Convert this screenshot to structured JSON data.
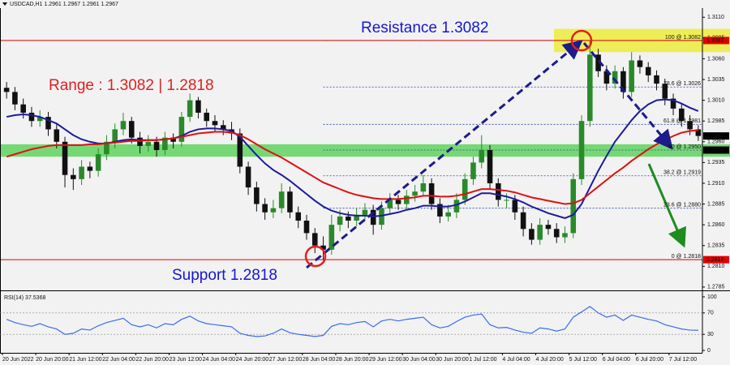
{
  "chart_data": {
    "type": "candlestick",
    "header": "USDCAD,H1  1.2961 1.2967 1.2961 1.2967",
    "annotations": {
      "resistance": "Resistance 1.3082",
      "range": "Range : 1.3082 | 1.2818",
      "support": "Support 1.2818"
    },
    "categories": [
      "20 Jun 2022",
      null,
      null,
      null,
      "20 Jun 20:00",
      null,
      null,
      null,
      "21 Jun 12:00",
      null,
      null,
      null,
      "22 Jun 04:00",
      null,
      null,
      null,
      "22 Jun 20:00",
      null,
      null,
      null,
      "23 Jun 12:00",
      null,
      null,
      null,
      "24 Jun 04:00",
      null,
      null,
      null,
      "24 Jun 20:00",
      null,
      null,
      null,
      "27 Jun 12:00",
      null,
      null,
      null,
      "28 Jun 04:00",
      null,
      null,
      null,
      "28 Jun 20:00",
      null,
      null,
      null,
      "29 Jun 12:00",
      null,
      null,
      null,
      "30 Jun 04:00",
      null,
      null,
      null,
      "30 Jun 20:00",
      null,
      null,
      null,
      "1 Jul 12:00",
      null,
      null,
      null,
      "4 Jul 04:00",
      null,
      null,
      null,
      "4 Jul 20:00",
      null,
      null,
      null,
      "5 Jul 12:00",
      null,
      null,
      null,
      "6 Jul 04:00",
      null,
      null,
      null,
      "6 Jul 20:00",
      null,
      null,
      null,
      "7 Jul 12:00",
      null,
      null,
      null
    ],
    "open": [
      1.3025,
      1.302,
      1.3005,
      1.2995,
      1.2985,
      1.299,
      1.2975,
      1.296,
      1.292,
      1.2915,
      1.293,
      1.2925,
      1.2945,
      1.296,
      1.2975,
      1.2985,
      1.2965,
      1.2955,
      1.296,
      1.295,
      1.2965,
      1.296,
      1.299,
      1.301,
      1.2995,
      1.2985,
      1.298,
      1.2975,
      1.297,
      1.293,
      1.2905,
      1.2885,
      1.2875,
      1.288,
      1.29,
      1.2875,
      1.2865,
      1.285,
      1.2835,
      1.283,
      1.286,
      1.287,
      1.2865,
      1.2872,
      1.2878,
      1.286,
      1.288,
      1.289,
      1.2885,
      1.2895,
      1.29,
      1.291,
      1.2885,
      1.287,
      1.2875,
      1.289,
      1.2915,
      1.2935,
      1.295,
      1.291,
      1.289,
      1.289,
      1.2875,
      1.2855,
      1.2842,
      1.286,
      1.2855,
      1.2845,
      1.285,
      1.2915,
      1.2985,
      1.3065,
      1.3045,
      1.303,
      1.3045,
      1.302,
      1.3058,
      1.305,
      1.304,
      1.303,
      1.3012,
      1.3,
      1.2985,
      1.2975
    ],
    "high": [
      1.3032,
      1.3026,
      1.3012,
      1.3002,
      1.2998,
      1.2996,
      1.2982,
      1.2966,
      1.2928,
      1.2938,
      1.2936,
      1.2952,
      1.2968,
      1.2982,
      1.2995,
      1.299,
      1.2972,
      1.2968,
      1.2966,
      1.2972,
      1.297,
      1.2996,
      1.3018,
      1.3014,
      1.3,
      1.2992,
      1.2986,
      1.2984,
      1.2976,
      1.2936,
      1.2912,
      1.2892,
      1.289,
      1.291,
      1.2906,
      1.2882,
      1.2872,
      1.2856,
      1.2846,
      1.2872,
      1.2878,
      1.2876,
      1.288,
      1.2886,
      1.2884,
      1.2888,
      1.2898,
      1.2896,
      1.2902,
      1.2908,
      1.292,
      1.2916,
      1.2892,
      1.2884,
      1.2898,
      1.2922,
      1.2942,
      1.2968,
      1.2956,
      1.2916,
      1.2898,
      1.2896,
      1.2882,
      1.2862,
      1.2868,
      1.2866,
      1.2862,
      1.2858,
      1.2922,
      1.2992,
      1.3082,
      1.3072,
      1.3052,
      1.3052,
      1.305,
      1.3068,
      1.3064,
      1.3056,
      1.3046,
      1.3036,
      1.3018,
      1.3006,
      1.2992,
      1.298
    ],
    "low": [
      1.3012,
      1.2998,
      1.2988,
      1.2978,
      1.2978,
      1.2967,
      1.2952,
      1.2905,
      1.2902,
      1.2908,
      1.2916,
      1.2918,
      1.2938,
      1.2952,
      1.2968,
      1.2958,
      1.2946,
      1.2948,
      1.2942,
      1.2944,
      1.2952,
      1.2954,
      1.2984,
      1.2988,
      1.2978,
      1.2972,
      1.2968,
      1.2962,
      1.2922,
      1.2896,
      1.2876,
      1.2866,
      1.2868,
      1.2874,
      1.2868,
      1.2856,
      1.2842,
      1.2826,
      1.2818,
      1.2824,
      1.2852,
      1.2856,
      1.2858,
      1.2866,
      1.2848,
      1.2854,
      1.2874,
      1.2878,
      1.2878,
      1.2888,
      1.2894,
      1.2878,
      1.2862,
      1.2864,
      1.2868,
      1.2884,
      1.2908,
      1.2928,
      1.2902,
      1.2882,
      1.288,
      1.2866,
      1.2846,
      1.2836,
      1.2836,
      1.2848,
      1.2838,
      1.2838,
      1.2844,
      1.2908,
      1.2978,
      1.3038,
      1.3022,
      1.3024,
      1.3012,
      1.3014,
      1.3042,
      1.3032,
      1.3022,
      1.3004,
      1.2992,
      1.2978,
      1.2968,
      1.2961
    ],
    "close": [
      1.302,
      1.3005,
      1.2995,
      1.2985,
      1.299,
      1.2975,
      1.296,
      1.292,
      1.2915,
      1.293,
      1.2925,
      1.2945,
      1.296,
      1.2975,
      1.2985,
      1.2965,
      1.2955,
      1.296,
      1.295,
      1.2965,
      1.296,
      1.299,
      1.301,
      1.2995,
      1.2985,
      1.298,
      1.2975,
      1.297,
      1.293,
      1.2905,
      1.2885,
      1.2875,
      1.288,
      1.29,
      1.2875,
      1.2865,
      1.285,
      1.2835,
      1.283,
      1.286,
      1.287,
      1.2865,
      1.2872,
      1.2878,
      1.286,
      1.288,
      1.289,
      1.2885,
      1.2895,
      1.29,
      1.291,
      1.2885,
      1.287,
      1.2875,
      1.289,
      1.2915,
      1.2935,
      1.295,
      1.291,
      1.289,
      1.289,
      1.2875,
      1.2855,
      1.2842,
      1.286,
      1.2855,
      1.2845,
      1.285,
      1.2915,
      1.2985,
      1.3065,
      1.3045,
      1.303,
      1.3045,
      1.302,
      1.3058,
      1.305,
      1.304,
      1.303,
      1.3012,
      1.3,
      1.2985,
      1.2975,
      1.2967
    ],
    "bull_color": "#2a8a2a",
    "bear_color": "#111111",
    "ma_lines": [
      {
        "color": "#1c1c9c",
        "values": [
          1.299,
          1.2992,
          1.2993,
          1.2992,
          1.299,
          1.2986,
          1.2982,
          1.2975,
          1.2968,
          1.2963,
          1.296,
          1.2958,
          1.2958,
          1.296,
          1.2962,
          1.2963,
          1.2962,
          1.2962,
          1.2962,
          1.2963,
          1.2964,
          1.2967,
          1.2972,
          1.2975,
          1.2976,
          1.2976,
          1.2975,
          1.2973,
          1.2966,
          1.2955,
          1.2944,
          1.2934,
          1.2926,
          1.292,
          1.2913,
          1.2905,
          1.2897,
          1.2889,
          1.2882,
          1.2877,
          1.2874,
          1.2872,
          1.2871,
          1.2871,
          1.287,
          1.2871,
          1.2873,
          1.2875,
          1.2878,
          1.288,
          1.2883,
          1.2883,
          1.2882,
          1.2882,
          1.2884,
          1.2888,
          1.2893,
          1.2898,
          1.2898,
          1.2896,
          1.2894,
          1.2891,
          1.2887,
          1.2882,
          1.2878,
          1.2874,
          1.2871,
          1.2868,
          1.2872,
          1.2885,
          1.2905,
          1.2925,
          1.2943,
          1.296,
          1.2973,
          1.2986,
          1.2997,
          1.3005,
          1.301,
          1.3011,
          1.301,
          1.3006,
          1.3001,
          1.2997
        ]
      },
      {
        "color": "#e01010",
        "values": [
          1.2942,
          1.2945,
          1.2948,
          1.2951,
          1.2953,
          1.2955,
          1.2956,
          1.2956,
          1.2956,
          1.2956,
          1.2957,
          1.2957,
          1.2958,
          1.2959,
          1.296,
          1.2961,
          1.2961,
          1.2962,
          1.2962,
          1.2963,
          1.2964,
          1.2966,
          1.2968,
          1.297,
          1.2971,
          1.2972,
          1.2972,
          1.2971,
          1.2968,
          1.2963,
          1.2957,
          1.2951,
          1.2946,
          1.2941,
          1.2935,
          1.2929,
          1.2923,
          1.2917,
          1.2911,
          1.2907,
          1.2903,
          1.2899,
          1.2896,
          1.2894,
          1.2892,
          1.2891,
          1.2891,
          1.2891,
          1.2892,
          1.2893,
          1.2895,
          1.2895,
          1.2894,
          1.2894,
          1.2895,
          1.2897,
          1.29,
          1.2903,
          1.2903,
          1.2902,
          1.2901,
          1.2899,
          1.2896,
          1.2893,
          1.2891,
          1.2889,
          1.2887,
          1.2885,
          1.2886,
          1.289,
          1.2898,
          1.2906,
          1.2914,
          1.2922,
          1.2929,
          1.2937,
          1.2944,
          1.2951,
          1.2957,
          1.2962,
          1.2967,
          1.2971,
          1.2973,
          1.2974
        ]
      }
    ],
    "ylim": [
      1.2781,
      1.3121
    ],
    "yticks": [
      1.2785,
      {
        "value": 1.281,
        "label": "1.2810"
      },
      1.2835,
      {
        "value": 1.286,
        "label": "1.2860"
      },
      1.2885,
      {
        "value": 1.291,
        "label": "1.2910"
      },
      1.2935,
      {
        "value": 1.296,
        "label": "1.2960"
      },
      1.2985,
      {
        "value": 1.301,
        "label": "1.3010"
      },
      1.3035,
      {
        "value": 1.306,
        "label": "1.3060"
      },
      1.3085,
      {
        "value": 1.311,
        "label": "1.3110"
      }
    ],
    "levels": [
      {
        "value": 1.3082,
        "color": "#e00000"
      },
      {
        "value": 1.2818,
        "color": "#e00000"
      }
    ],
    "price_tags": [
      {
        "value": 1.3082,
        "color": "#e00000"
      },
      {
        "value": 1.2967,
        "color": "#000000"
      },
      {
        "value": 1.295,
        "label": "1.2950",
        "color": "#000000"
      },
      {
        "value": 1.2818,
        "color": "#e00000"
      }
    ],
    "fib_levels": [
      {
        "value": 1.3082,
        "label": "100 @ 1.3082"
      },
      {
        "value": 1.3026,
        "label": "78.6 @ 1.3026"
      },
      {
        "value": 1.2981,
        "label": "61.8 @ 1.2981"
      },
      {
        "value": 1.295,
        "label": "50 @ 1.2950"
      },
      {
        "value": 1.2919,
        "label": "38.2 @ 1.2919"
      },
      {
        "value": 1.288,
        "label": "23.6 @ 1.2880"
      },
      {
        "value": 1.2818,
        "label": "0 @ 1.2818"
      }
    ],
    "zones": [
      {
        "range": [
          1.2942,
          1.2957
        ],
        "color": "#5fd35f"
      },
      {
        "range": [
          1.3068,
          1.3096
        ],
        "color": "#ecec3c"
      }
    ],
    "rsi": {
      "label": "RSI(14) 37.5368",
      "color": "#3a6cf0",
      "ylim": [
        0,
        100
      ],
      "yticks": [
        0,
        30,
        70,
        100
      ],
      "values": [
        58,
        52,
        48,
        45,
        50,
        44,
        40,
        30,
        32,
        40,
        38,
        46,
        52,
        56,
        60,
        48,
        44,
        48,
        42,
        50,
        48,
        58,
        64,
        55,
        50,
        48,
        46,
        44,
        32,
        28,
        26,
        27,
        32,
        40,
        33,
        30,
        28,
        26,
        28,
        45,
        50,
        48,
        52,
        54,
        44,
        55,
        58,
        55,
        58,
        60,
        62,
        48,
        42,
        45,
        54,
        62,
        66,
        68,
        48,
        42,
        43,
        38,
        34,
        32,
        42,
        40,
        36,
        40,
        62,
        72,
        82,
        70,
        62,
        66,
        56,
        66,
        62,
        58,
        55,
        48,
        44,
        40,
        38,
        37.5368
      ]
    }
  }
}
